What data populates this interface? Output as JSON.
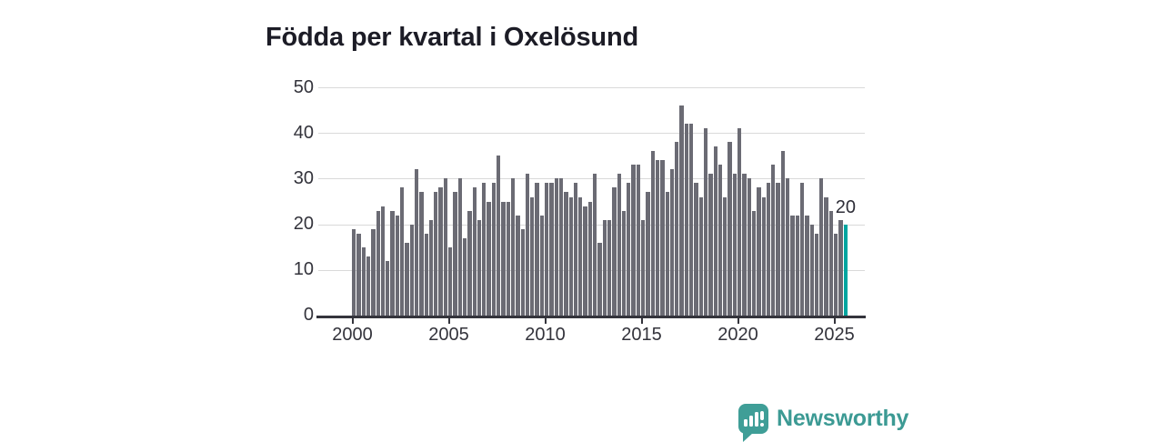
{
  "title": "Födda per kvartal i Oxelösund",
  "chart_data": {
    "type": "bar",
    "title": "Födda per kvartal i Oxelösund",
    "x_start": "2000 Q1",
    "x_frequency": "quarterly",
    "x_tick_labels": [
      "2000",
      "2005",
      "2010",
      "2015",
      "2020",
      "2025"
    ],
    "y_ticks": [
      0,
      10,
      20,
      30,
      40,
      50
    ],
    "ylim": [
      0,
      50
    ],
    "grid": "horizontal",
    "bar_color": "#6b6b74",
    "series": [
      {
        "name": "Födda per kvartal",
        "values": [
          19,
          18,
          15,
          13,
          19,
          23,
          24,
          12,
          23,
          22,
          28,
          16,
          20,
          32,
          27,
          18,
          21,
          27,
          28,
          30,
          15,
          27,
          30,
          17,
          23,
          28,
          21,
          29,
          25,
          29,
          35,
          25,
          25,
          30,
          22,
          19,
          31,
          26,
          29,
          22,
          29,
          29,
          30,
          30,
          27,
          26,
          29,
          26,
          24,
          25,
          31,
          16,
          21,
          21,
          28,
          31,
          23,
          29,
          33,
          33,
          21,
          27,
          36,
          34,
          34,
          27,
          32,
          38,
          46,
          42,
          42,
          29,
          26,
          41,
          31,
          37,
          33,
          26,
          38,
          31,
          41,
          31,
          30,
          23,
          28,
          26,
          29,
          33,
          29,
          36,
          30,
          22,
          22,
          29,
          22,
          20,
          18,
          30,
          26,
          23,
          18,
          21,
          20
        ]
      }
    ],
    "highlight": {
      "position": "last-bar",
      "quarter": "2025 Q3",
      "value": 20,
      "label": "20",
      "color": "#00a5a0"
    }
  },
  "branding": {
    "logo_text": "Newsworthy",
    "logo_color": "#3c9a94",
    "icon": "newsworthy-speech-bubble-bar-chart-icon"
  }
}
